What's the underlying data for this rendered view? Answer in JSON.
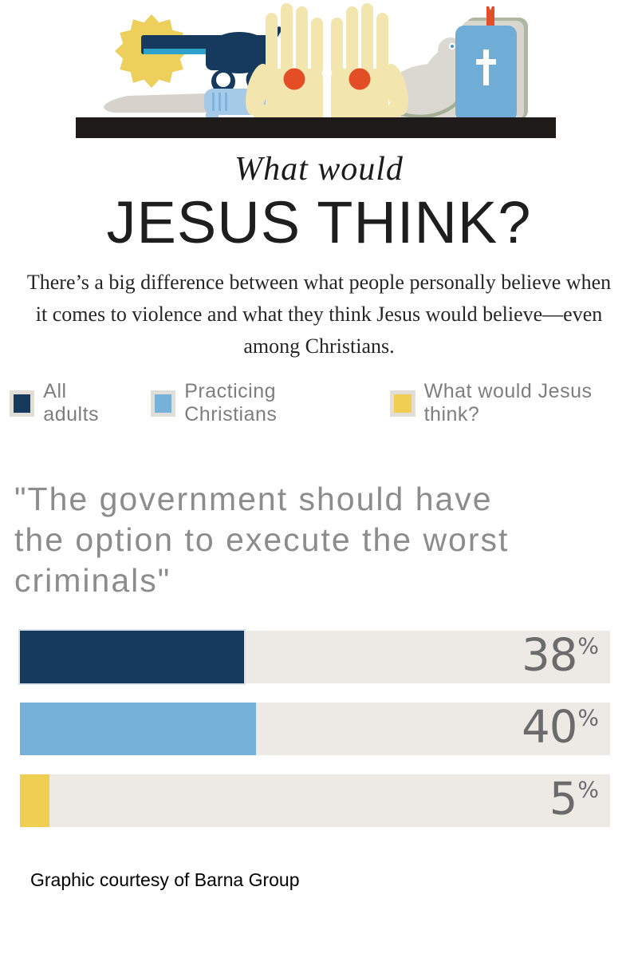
{
  "title": {
    "eyebrow": "What would",
    "main": "JESUS THINK?"
  },
  "intro": "There’s a big difference between what people personally believe when it comes to violence and what they think Jesus would believe—even among Christians.",
  "legend": [
    {
      "label": "All adults",
      "color": "#163A5E"
    },
    {
      "label": "Practicing Christians",
      "color": "#76B1D9"
    },
    {
      "label": "What would Jesus think?",
      "color": "#F0CE52"
    }
  ],
  "question": "\"The government should have the option to execute the worst criminals\"",
  "chart_data": {
    "type": "bar",
    "orientation": "horizontal",
    "title": "What would JESUS THINK?",
    "statement": "\"The government should have the option to execute the worst criminals\"",
    "categories": [
      "All adults",
      "Practicing Christians",
      "What would Jesus think?"
    ],
    "values": [
      38,
      40,
      5
    ],
    "unit": "%",
    "xlim": [
      0,
      100
    ],
    "bar_colors": [
      "#163A5E",
      "#76B1D9",
      "#F0CE52"
    ],
    "track_color": "#EDEAE6",
    "value_label_color": "#6B6B6B",
    "legend_position": "top",
    "grid": false,
    "source": "Barna Group"
  },
  "footer": {
    "credit": "Graphic courtesy of Barna Group"
  },
  "illustration": {
    "icons": [
      "muzzle-flash-icon",
      "revolver-icon",
      "knife-icon",
      "left-hand-icon",
      "right-hand-icon",
      "stigmata-dot",
      "dove-icon",
      "bible-icon",
      "shelf"
    ]
  }
}
